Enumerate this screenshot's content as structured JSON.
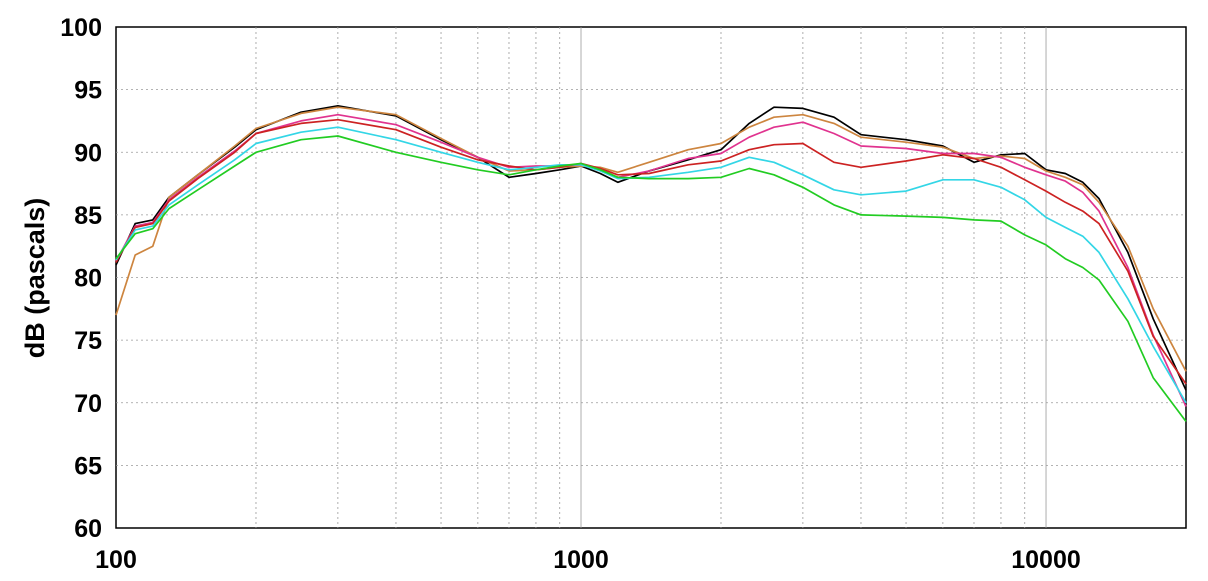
{
  "chart_data": {
    "type": "line",
    "title": "",
    "xlabel": "",
    "ylabel": "dB (pascals)",
    "x_scale": "log",
    "xlim": [
      100,
      20000
    ],
    "ylim": [
      60,
      100
    ],
    "grid": true,
    "legend": "none",
    "x_ticks": [
      "100",
      "1000",
      "10000"
    ],
    "y_ticks": [
      "60",
      "65",
      "70",
      "75",
      "80",
      "85",
      "90",
      "95",
      "100"
    ],
    "x": [
      100,
      110,
      120,
      130,
      150,
      180,
      200,
      250,
      300,
      400,
      500,
      600,
      700,
      800,
      900,
      1000,
      1100,
      1200,
      1400,
      1700,
      2000,
      2300,
      2600,
      3000,
      3500,
      4000,
      5000,
      6000,
      7000,
      8000,
      9000,
      10000,
      11000,
      12000,
      13000,
      15000,
      17000,
      20000
    ],
    "series": [
      {
        "color": "#000000",
        "values": [
          81.0,
          84.3,
          84.6,
          86.4,
          88.2,
          90.4,
          91.8,
          93.2,
          93.7,
          92.9,
          91.0,
          89.6,
          88.0,
          88.3,
          88.6,
          88.9,
          88.3,
          87.6,
          88.5,
          89.4,
          90.2,
          92.3,
          93.6,
          93.5,
          92.8,
          91.4,
          91.0,
          90.5,
          89.2,
          89.8,
          89.9,
          88.6,
          88.3,
          87.6,
          86.3,
          82.0,
          76.7,
          71.0
        ]
      },
      {
        "color": "#cd853f",
        "values": [
          77.0,
          81.8,
          82.5,
          86.4,
          88.2,
          90.5,
          91.9,
          93.1,
          93.6,
          93.0,
          91.1,
          89.6,
          88.5,
          88.6,
          88.8,
          88.9,
          88.8,
          88.4,
          89.2,
          90.2,
          90.7,
          92.0,
          92.8,
          93.0,
          92.3,
          91.2,
          90.8,
          90.4,
          89.5,
          89.7,
          89.5,
          88.5,
          88.0,
          87.4,
          86.0,
          82.5,
          77.5,
          72.5
        ]
      },
      {
        "color": "#e0338f",
        "values": [
          81.3,
          84.1,
          84.4,
          86.2,
          88.0,
          90.1,
          91.5,
          92.5,
          93.0,
          92.2,
          90.8,
          89.6,
          88.8,
          88.9,
          88.9,
          89.0,
          88.6,
          88.0,
          88.5,
          89.5,
          89.9,
          91.2,
          92.0,
          92.4,
          91.5,
          90.5,
          90.3,
          89.9,
          89.9,
          89.6,
          88.8,
          88.2,
          87.7,
          86.8,
          85.3,
          80.8,
          75.4,
          69.7
        ]
      },
      {
        "color": "#cc2222",
        "values": [
          81.2,
          84.0,
          84.3,
          86.1,
          87.9,
          90.0,
          91.5,
          92.3,
          92.6,
          91.8,
          90.4,
          89.4,
          88.9,
          88.6,
          88.8,
          89.1,
          88.7,
          88.2,
          88.3,
          89.0,
          89.3,
          90.2,
          90.6,
          90.7,
          89.2,
          88.8,
          89.3,
          89.8,
          89.5,
          88.8,
          87.8,
          86.9,
          86.0,
          85.3,
          84.3,
          80.5,
          75.3,
          71.5
        ]
      },
      {
        "color": "#33d6e6",
        "values": [
          81.4,
          83.8,
          84.1,
          85.8,
          87.4,
          89.4,
          90.7,
          91.6,
          92.0,
          91.0,
          90.0,
          89.2,
          88.6,
          88.8,
          89.0,
          89.0,
          88.5,
          87.9,
          88.0,
          88.4,
          88.8,
          89.6,
          89.2,
          88.2,
          87.0,
          86.6,
          86.9,
          87.8,
          87.8,
          87.2,
          86.2,
          84.8,
          84.0,
          83.3,
          82.0,
          78.3,
          74.5,
          70.0
        ]
      },
      {
        "color": "#22cc22",
        "values": [
          81.5,
          83.5,
          83.9,
          85.5,
          87.0,
          88.9,
          90.0,
          91.0,
          91.3,
          90.0,
          89.2,
          88.6,
          88.2,
          88.6,
          88.9,
          89.1,
          88.6,
          88.0,
          87.9,
          87.9,
          88.0,
          88.7,
          88.2,
          87.2,
          85.8,
          85.0,
          84.9,
          84.8,
          84.6,
          84.5,
          83.4,
          82.6,
          81.5,
          80.8,
          79.8,
          76.5,
          72.0,
          68.5
        ]
      }
    ]
  }
}
